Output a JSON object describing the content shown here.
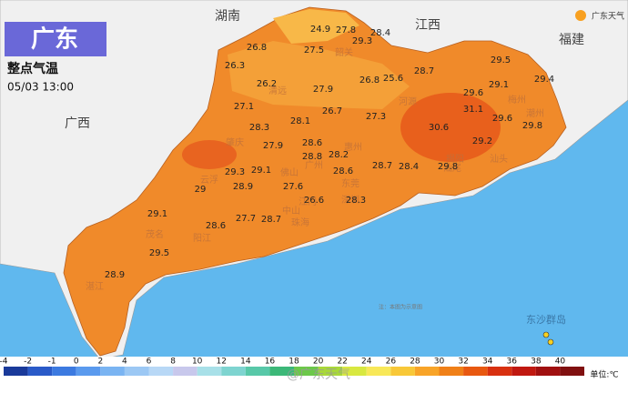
{
  "header": {
    "title": "广东",
    "subtitle": "整点气温",
    "time": "05/03 13:00",
    "logo": "广东天气"
  },
  "provinces": [
    "湖南",
    "江西",
    "福建",
    "广西"
  ],
  "cities": [
    "韶关",
    "清远",
    "河源",
    "梅州",
    "潮州",
    "汕头",
    "揭阳",
    "汕尾",
    "惠州",
    "肇庆",
    "佛山",
    "广州",
    "东莞",
    "深圳",
    "江门",
    "中山",
    "珠海",
    "云浮",
    "阳江",
    "茂名",
    "湛江"
  ],
  "islands": "东沙群岛",
  "note": "注：本图为示意图",
  "watermark": "@广东天气",
  "stations": [
    24.9,
    27.8,
    28.4,
    29.3,
    26.8,
    27.5,
    26.3,
    26.2,
    27.9,
    26.8,
    25.6,
    28.7,
    29.5,
    29.1,
    29.4,
    29.6,
    31.1,
    27.1,
    26.7,
    27.3,
    28.3,
    28.1,
    30.6,
    29.6,
    29.8,
    29.2,
    27.9,
    28.6,
    28.8,
    28.2,
    29.3,
    29.1,
    28.6,
    28.4,
    29.8,
    28.7,
    29,
    28.9,
    27.6,
    26.6,
    28.3,
    29.1,
    28.6,
    27.7,
    28.7,
    29.5,
    28.9
  ],
  "legend": {
    "values": [
      -4,
      -2,
      -1,
      0,
      2,
      4,
      6,
      8,
      10,
      12,
      14,
      16,
      18,
      20,
      22,
      24,
      26,
      28,
      30,
      32,
      34,
      36,
      38,
      40
    ],
    "colors": [
      "#1a3a9a",
      "#2a5ac8",
      "#3c7ae0",
      "#5a9aee",
      "#7ab4f2",
      "#9cc8f4",
      "#b8d8f6",
      "#c8c8ec",
      "#a8e0e8",
      "#7ed4d0",
      "#58c8a8",
      "#3cb878",
      "#6cc84a",
      "#a8d838",
      "#d8e840",
      "#f8e858",
      "#f8c838",
      "#f8a428",
      "#f08018",
      "#e85810",
      "#d83010",
      "#c01810",
      "#a01010",
      "#801010"
    ],
    "unit": "单位:℃"
  }
}
